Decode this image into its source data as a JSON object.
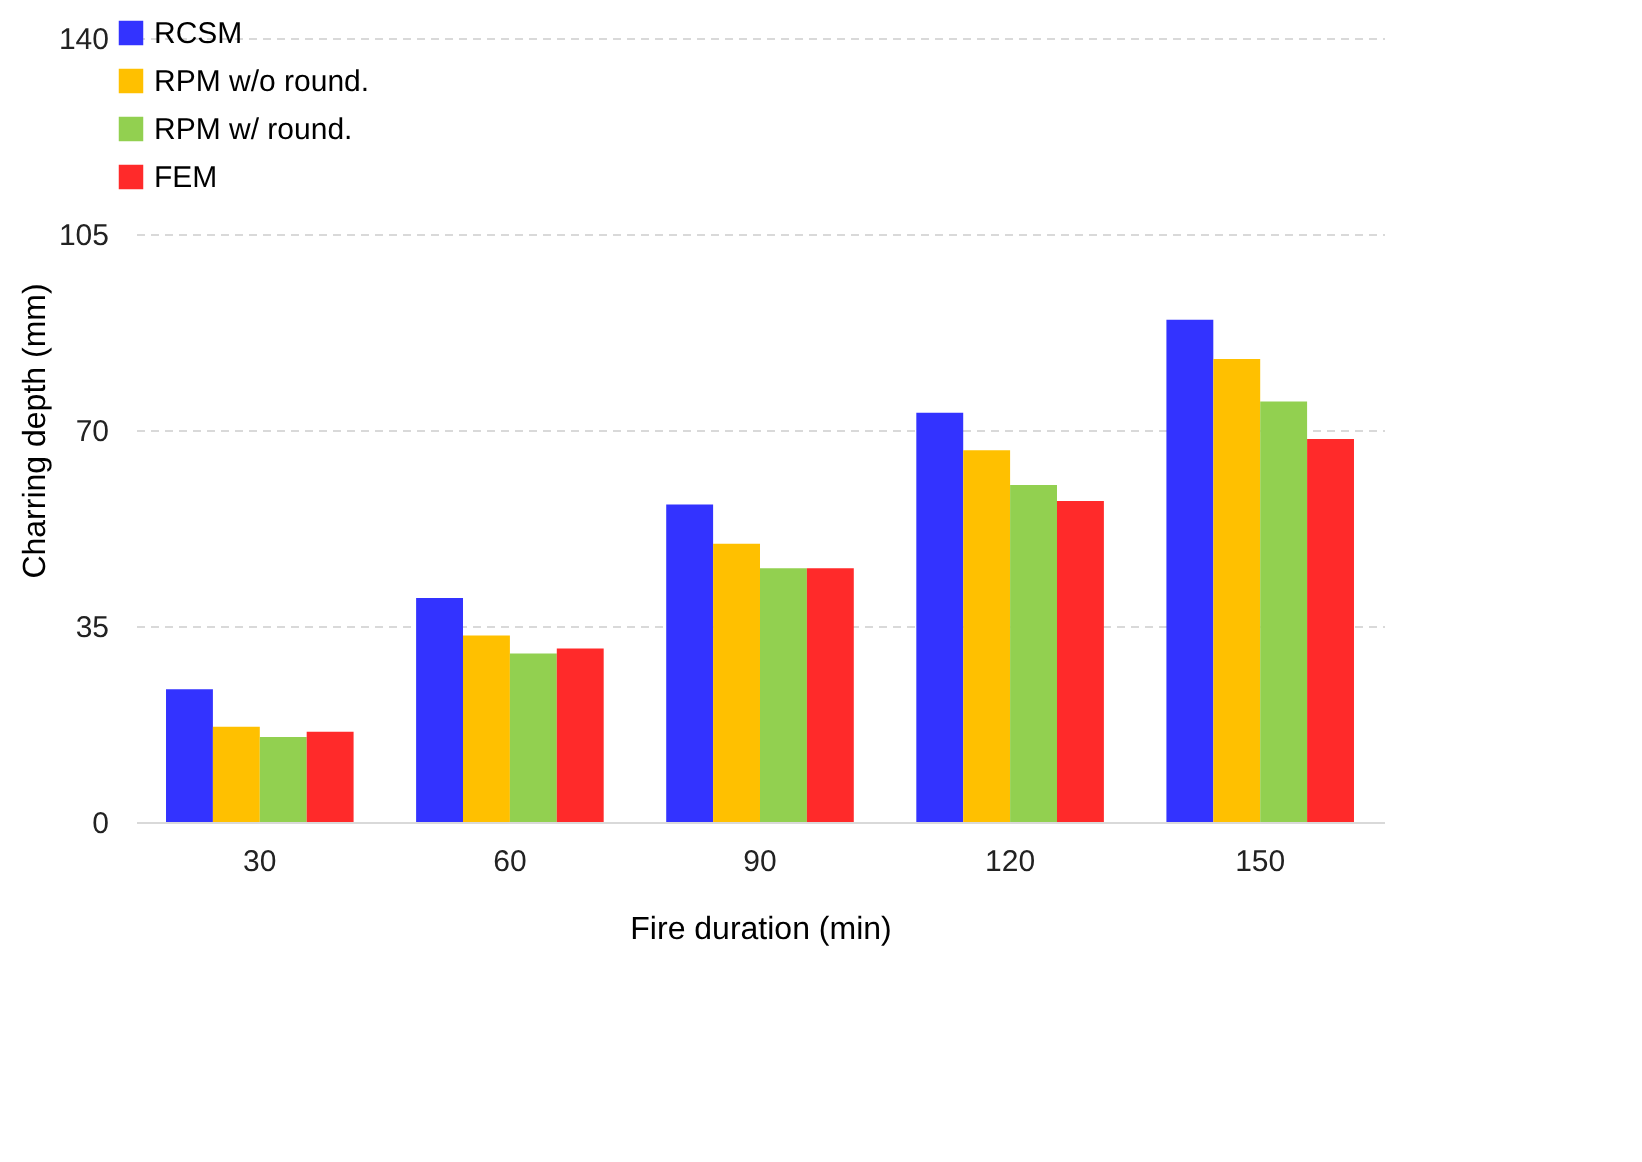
{
  "chart_data": {
    "type": "bar",
    "xlabel": "Fire duration (min)",
    "ylabel": "Charring depth (mm)",
    "categories": [
      "30",
      "60",
      "90",
      "120",
      "150"
    ],
    "series": [
      {
        "name": "RCSM",
        "color": "#3333ff",
        "values": [
          23.7,
          40.0,
          56.7,
          73.1,
          89.7
        ]
      },
      {
        "name": "RPM w/o round.",
        "color": "#ffc000",
        "values": [
          17.0,
          33.3,
          49.7,
          66.4,
          82.7
        ]
      },
      {
        "name": "RPM w/ round.",
        "color": "#92d050",
        "values": [
          15.2,
          30.1,
          45.3,
          60.2,
          75.1
        ]
      },
      {
        "name": "FEM",
        "color": "#ff2a2a",
        "values": [
          16.1,
          31.0,
          45.3,
          57.3,
          68.4
        ]
      }
    ],
    "ylim": [
      0,
      140
    ],
    "yticks": [
      0,
      35,
      70,
      105,
      140
    ],
    "grid": "y",
    "legend": "top left"
  }
}
